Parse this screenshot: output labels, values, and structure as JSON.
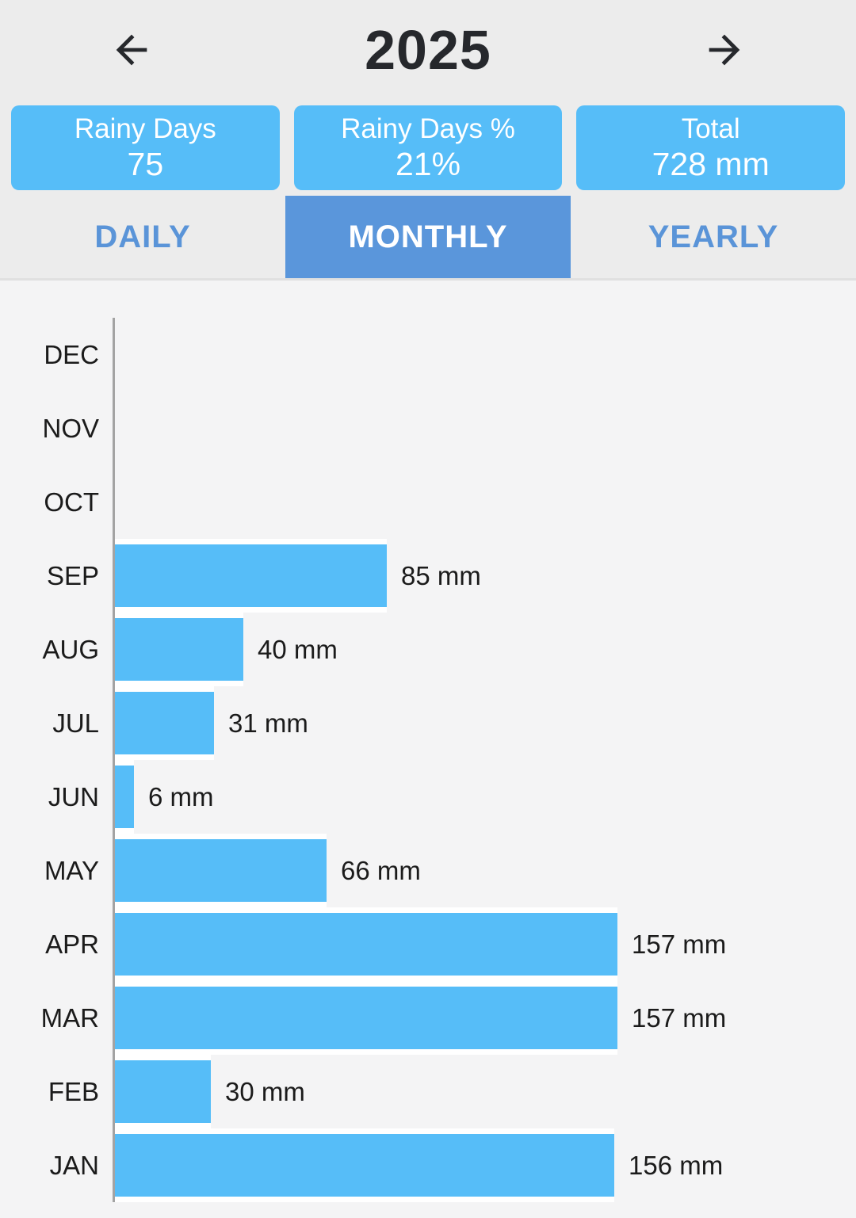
{
  "header": {
    "year": "2025",
    "prev_icon": "arrow-left-icon",
    "next_icon": "arrow-right-icon"
  },
  "stats": [
    {
      "label": "Rainy Days",
      "value": "75"
    },
    {
      "label": "Rainy Days %",
      "value": "21%"
    },
    {
      "label": "Total",
      "value": "728 mm"
    }
  ],
  "tabs": [
    {
      "label": "DAILY",
      "selected": false
    },
    {
      "label": "MONTHLY",
      "selected": true
    },
    {
      "label": "YEARLY",
      "selected": false
    }
  ],
  "chart_data": {
    "type": "bar",
    "orientation": "horizontal",
    "categories": [
      "DEC",
      "NOV",
      "OCT",
      "SEP",
      "AUG",
      "JUL",
      "JUN",
      "MAY",
      "APR",
      "MAR",
      "FEB",
      "JAN"
    ],
    "values": [
      0,
      0,
      0,
      85,
      40,
      31,
      6,
      66,
      157,
      157,
      30,
      156
    ],
    "labels": [
      "",
      "",
      "",
      "85 mm",
      "40 mm",
      "31 mm",
      "6 mm",
      "66 mm",
      "157 mm",
      "157 mm",
      "30 mm",
      "156 mm"
    ],
    "unit": "mm",
    "xlim": [
      0,
      232
    ],
    "grid": false,
    "legend": false,
    "title": "",
    "xlabel": "",
    "ylabel": ""
  },
  "colors": {
    "top_bg": "#ececec",
    "chart_bg": "#f4f4f5",
    "card_blue": "#56bdf8",
    "bar_blue": "#56bdf8",
    "tab_selected_bg": "#5a96db",
    "tab_text": "#5a94d8",
    "dark_text": "#26282c",
    "axis_color": "#a3a3a3"
  }
}
